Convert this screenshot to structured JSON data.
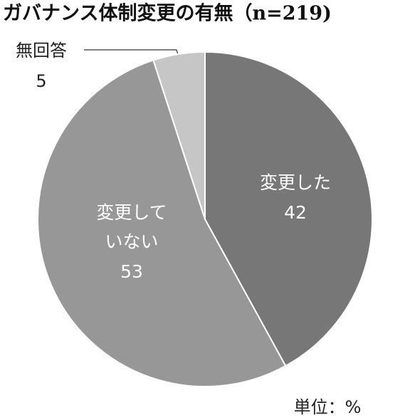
{
  "chart_data": {
    "type": "pie",
    "title": "ガバナンス体制変更の有無（n=219)",
    "categories": [
      "変更した",
      "変更していない",
      "無回答"
    ],
    "values": [
      42,
      53,
      5
    ],
    "colors": [
      "#777777",
      "#979797",
      "#c6c6c6"
    ],
    "unit_label": "単位：%"
  }
}
